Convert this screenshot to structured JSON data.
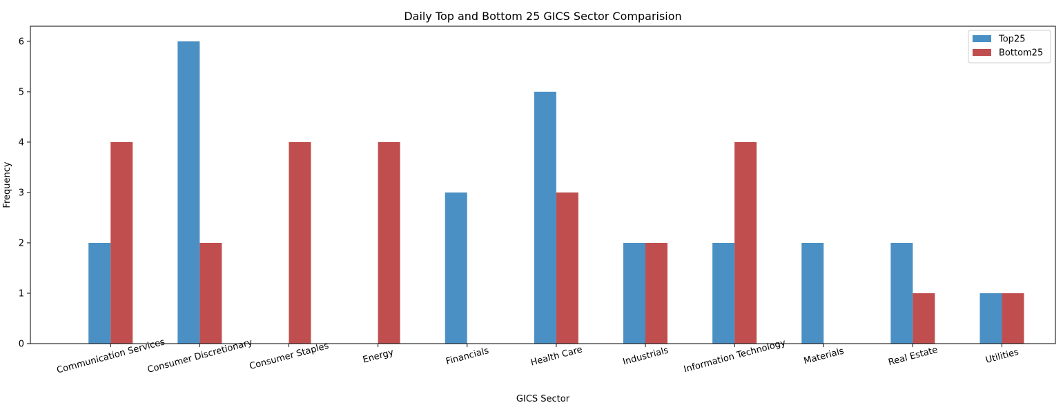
{
  "chart_data": {
    "type": "bar",
    "title": "Daily Top and Bottom 25 GICS Sector Comparision",
    "xlabel": "GICS Sector",
    "ylabel": "Frequency",
    "categories": [
      "Communication Services",
      "Consumer Discretionary",
      "Consumer Staples",
      "Energy",
      "Financials",
      "Health Care",
      "Industrials",
      "Information Technology",
      "Materials",
      "Real Estate",
      "Utilities"
    ],
    "series": [
      {
        "name": "Top25",
        "color": "#4a90c4",
        "values": [
          2,
          6,
          0,
          0,
          3,
          5,
          2,
          2,
          2,
          2,
          1
        ]
      },
      {
        "name": "Bottom25",
        "color": "#c04e4e",
        "values": [
          4,
          2,
          4,
          4,
          0,
          3,
          2,
          4,
          0,
          1,
          1
        ]
      }
    ],
    "ylim": [
      0,
      6.3
    ],
    "yticks": [
      "0",
      "1",
      "2",
      "3",
      "4",
      "5",
      "6"
    ],
    "grid": false,
    "legend_position": "top-right"
  }
}
